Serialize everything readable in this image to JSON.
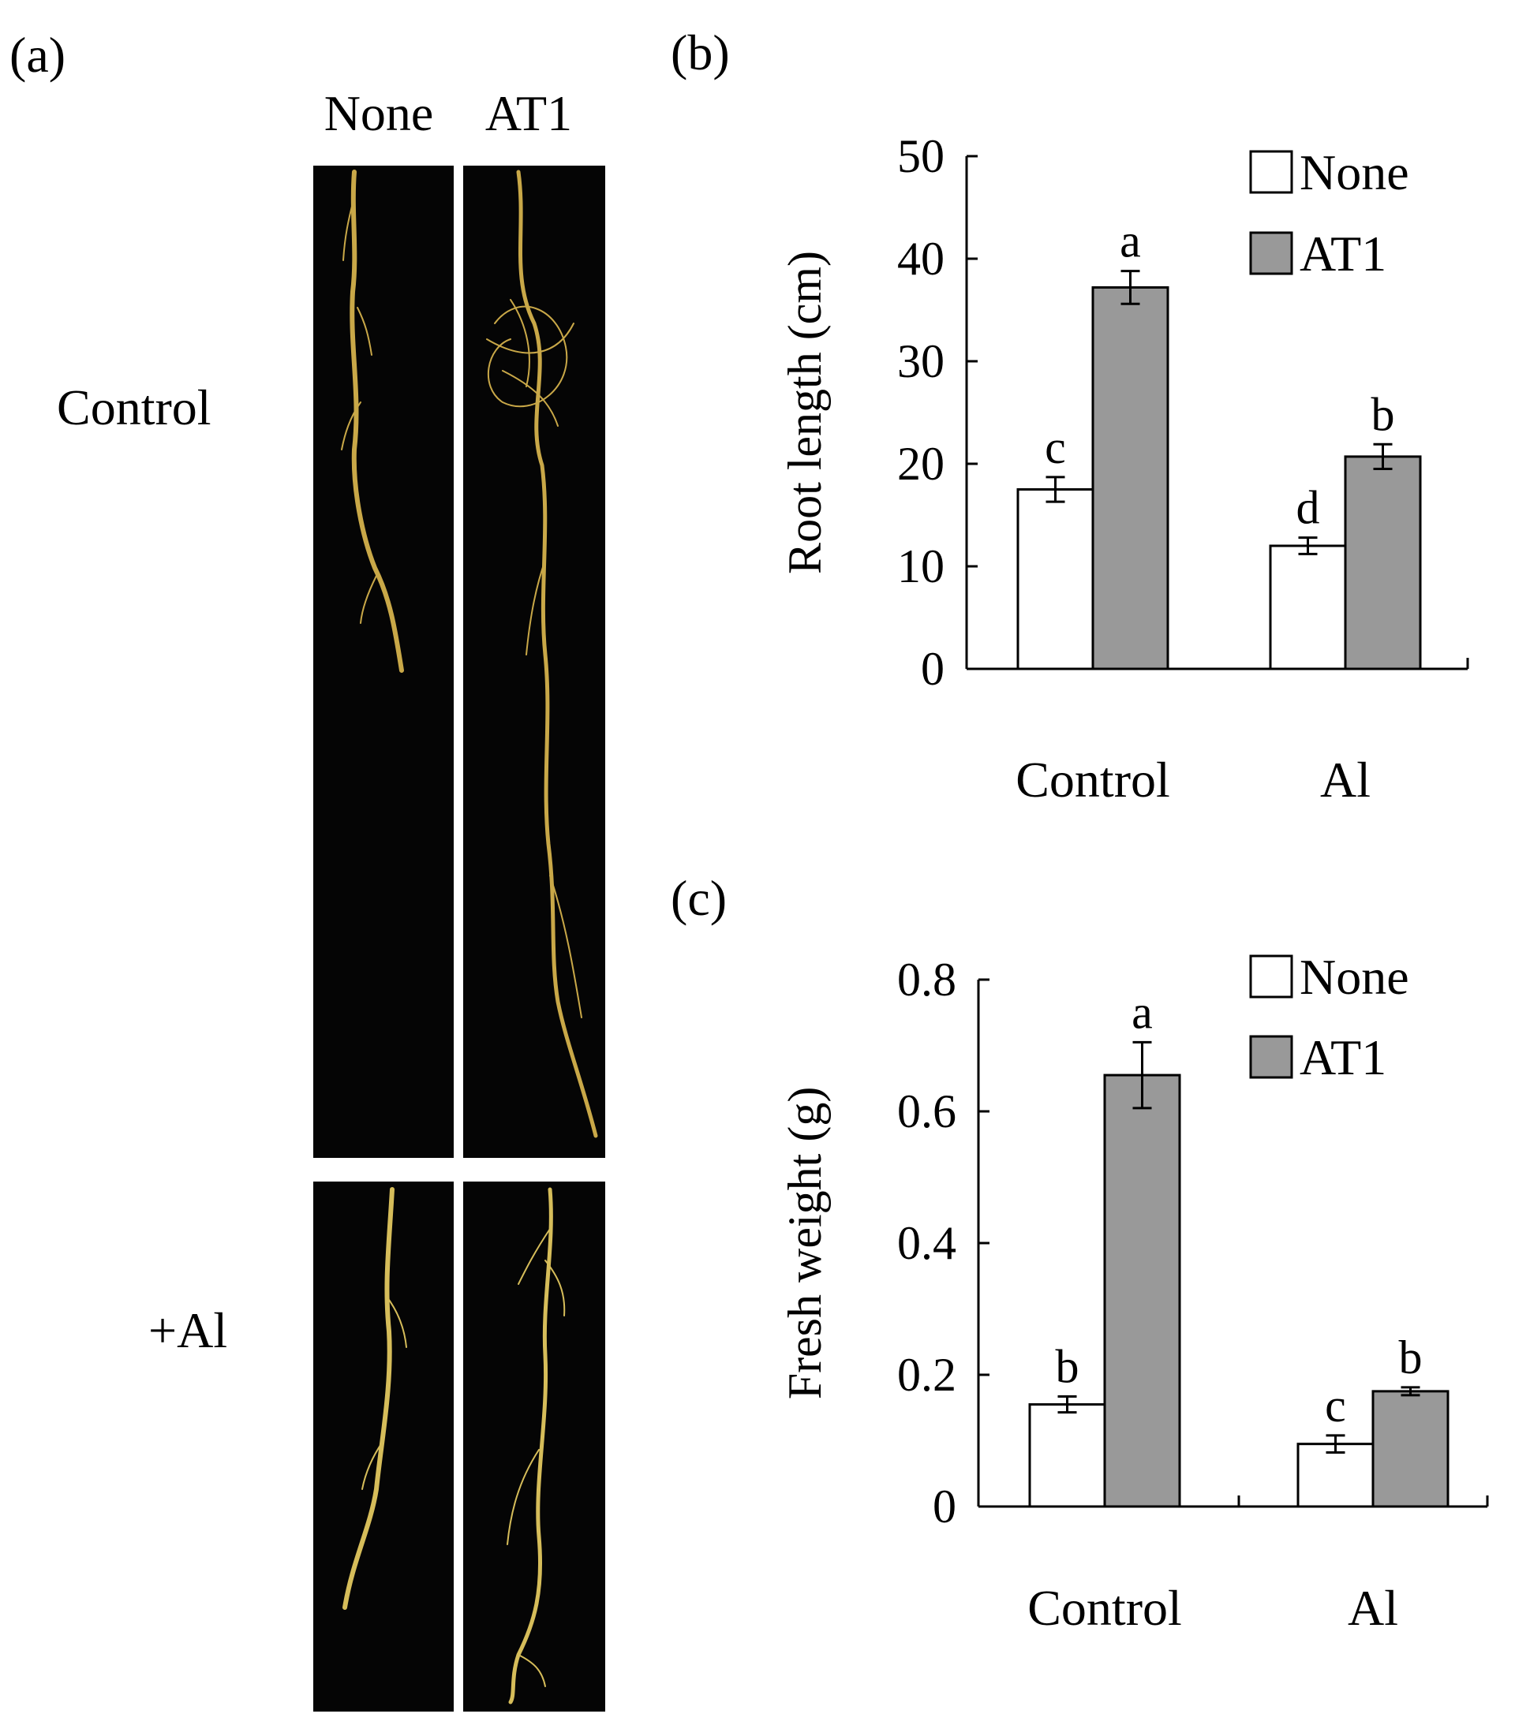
{
  "panel_a": {
    "label": "(a)",
    "col_headers": [
      "None",
      "AT1"
    ],
    "row_labels": [
      "Control",
      "+Al"
    ]
  },
  "chart_data": [
    {
      "panel_label": "(b)",
      "type": "bar",
      "categories": [
        "Control",
        "Al"
      ],
      "series": [
        {
          "name": "None",
          "values": [
            17.5,
            12.0
          ],
          "errors": [
            1.2,
            0.8
          ],
          "color": "#ffffff",
          "letters": [
            "c",
            "d"
          ]
        },
        {
          "name": "AT1",
          "values": [
            37.2,
            20.7
          ],
          "errors": [
            1.6,
            1.2
          ],
          "color": "#999999",
          "letters": [
            "a",
            "b"
          ]
        }
      ],
      "ylabel": "Root length (cm)",
      "ylim": [
        0,
        50
      ],
      "yticks": [
        "0",
        "10",
        "20",
        "30",
        "40",
        "50"
      ],
      "legend": "top-right",
      "grid": false
    },
    {
      "panel_label": "(c)",
      "type": "bar",
      "categories": [
        "Control",
        "Al"
      ],
      "series": [
        {
          "name": "None",
          "values": [
            0.155,
            0.095
          ],
          "errors": [
            0.012,
            0.013
          ],
          "color": "#ffffff",
          "letters": [
            "b",
            "c"
          ]
        },
        {
          "name": "AT1",
          "values": [
            0.655,
            0.175
          ],
          "errors": [
            0.05,
            0.006
          ],
          "color": "#999999",
          "letters": [
            "a",
            "b"
          ]
        }
      ],
      "ylabel": "Fresh weight (g)",
      "ylim": [
        0,
        0.8
      ],
      "yticks": [
        "0",
        "0.2",
        "0.4",
        "0.6",
        "0.8"
      ],
      "legend": "top-right",
      "grid": false
    }
  ]
}
